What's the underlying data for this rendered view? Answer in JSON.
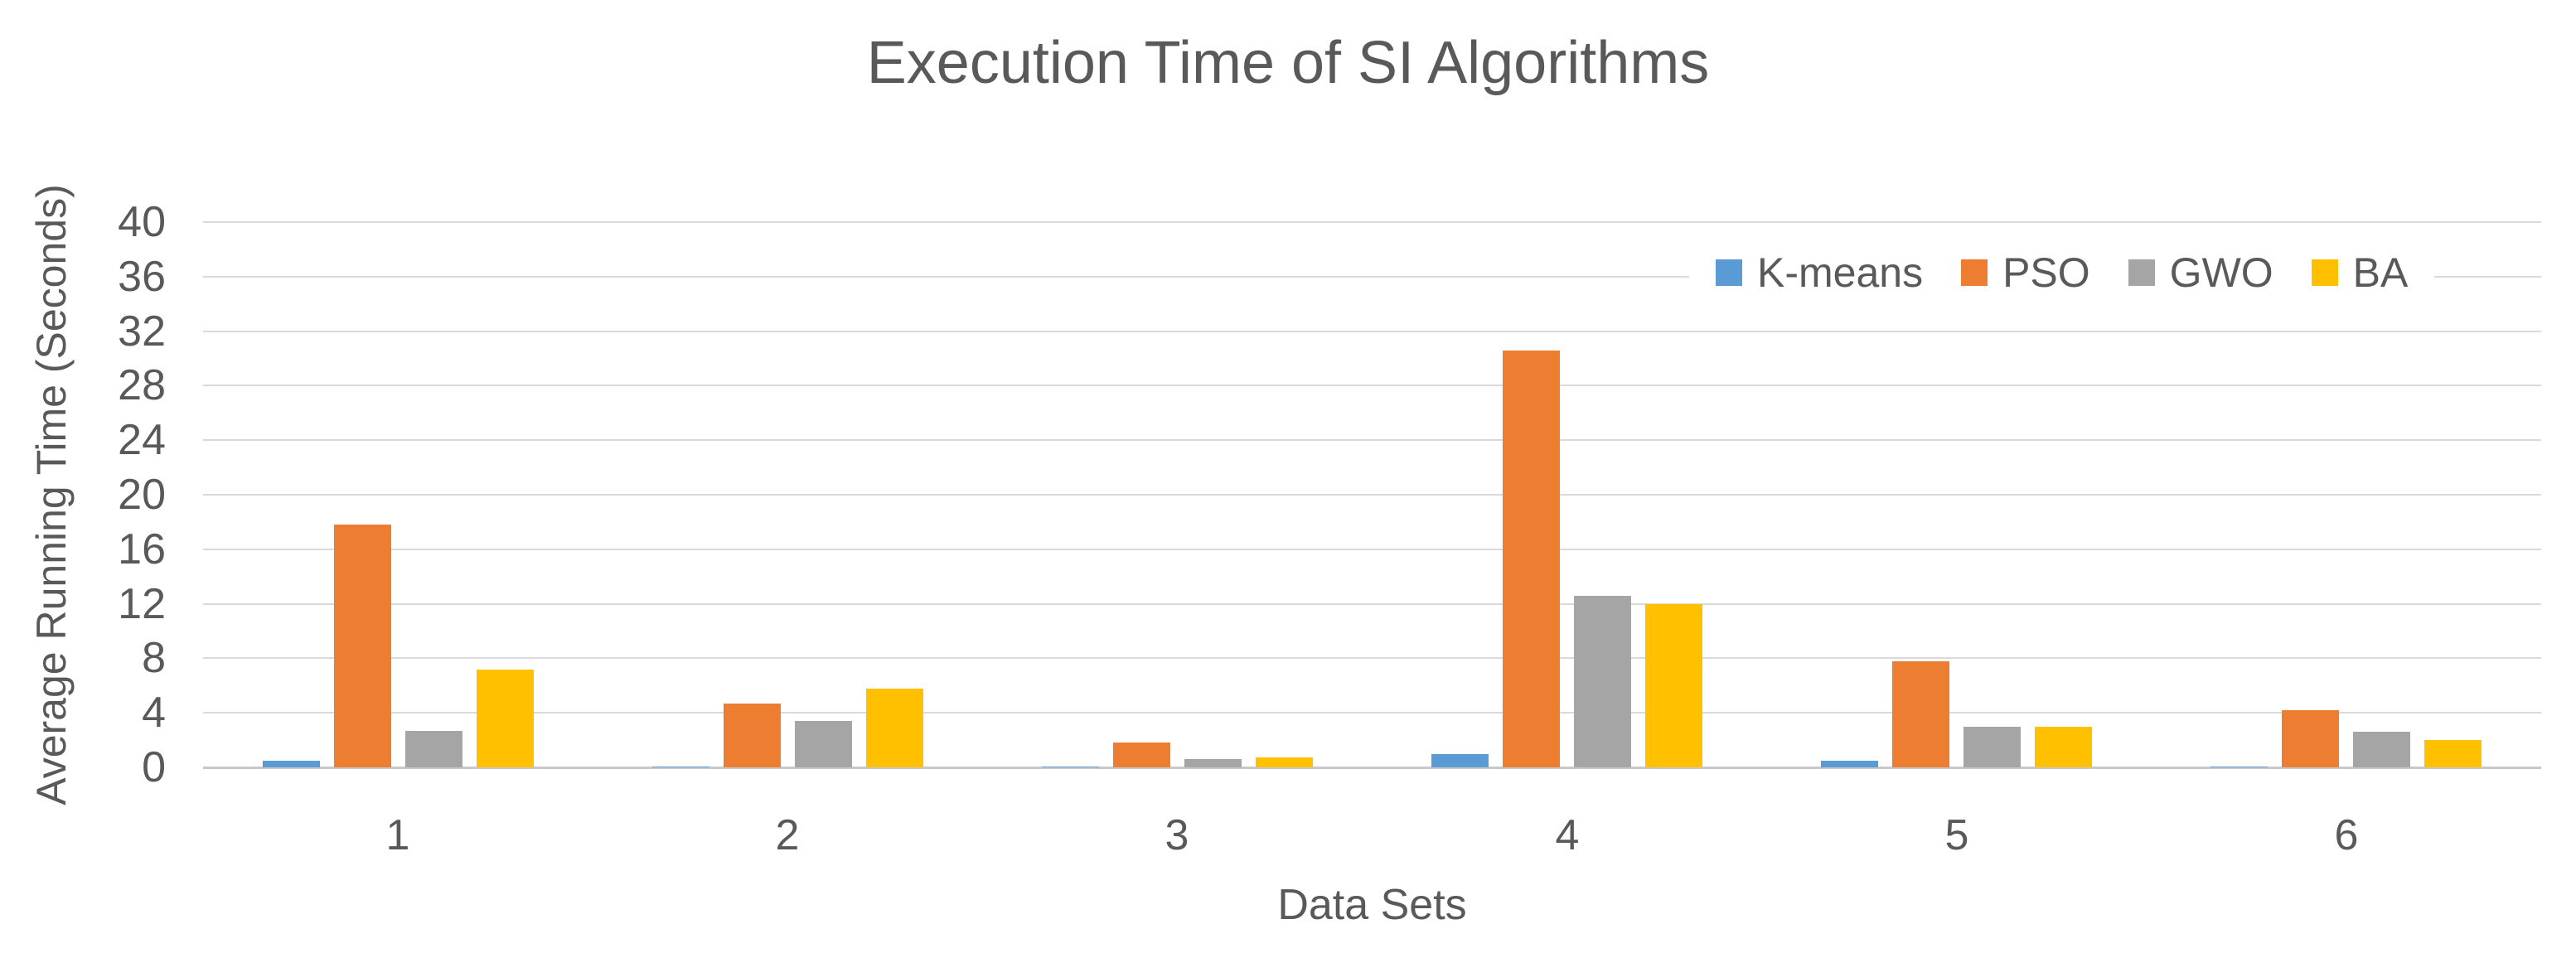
{
  "chart_data": {
    "type": "bar",
    "title": "Execution Time of SI Algorithms",
    "xlabel": "Data Sets",
    "ylabel": "Average Running Time (Seconds)",
    "categories": [
      "1",
      "2",
      "3",
      "4",
      "5",
      "6"
    ],
    "series": [
      {
        "name": "K-means",
        "color": "#5B9BD5",
        "values": [
          0.5,
          0.05,
          0.05,
          1.0,
          0.5,
          0.05
        ]
      },
      {
        "name": "PSO",
        "color": "#ED7D31",
        "values": [
          17.8,
          4.7,
          1.8,
          30.6,
          7.8,
          4.2
        ]
      },
      {
        "name": "GWO",
        "color": "#A5A5A5",
        "values": [
          2.7,
          3.4,
          0.6,
          12.6,
          3.0,
          2.6
        ]
      },
      {
        "name": "BA",
        "color": "#FFC000",
        "values": [
          7.2,
          5.8,
          0.7,
          12.0,
          3.0,
          2.0
        ]
      }
    ],
    "ylim": [
      0,
      40
    ],
    "yticks": [
      0,
      4,
      8,
      12,
      16,
      20,
      24,
      28,
      32,
      36,
      40
    ],
    "grid": true,
    "legend_position": "top-right"
  },
  "colors": {
    "text": "#595959",
    "gridline": "#DADADA",
    "axis_line": "#C8C8C8",
    "background": "#FFFFFF"
  }
}
